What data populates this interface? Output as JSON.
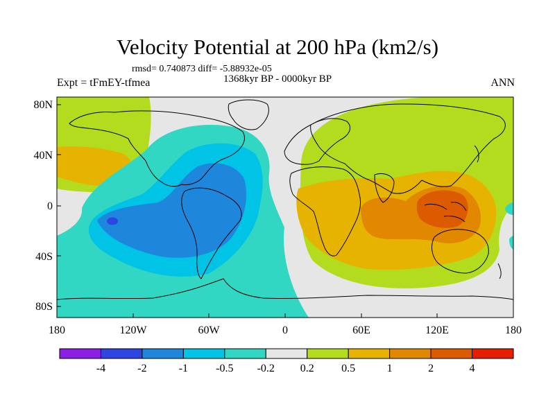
{
  "title": "Velocity Potential at 200 hPa (km2/s)",
  "stats": "rmsd= 0.740873 diff= -5.88932e-05",
  "period": "1368kyr BP - 0000kyr BP",
  "experiment": "Expt = tFmEY-tfmea",
  "season": "ANN",
  "map": {
    "lat_ticks": [
      "80N",
      "40N",
      "0",
      "40S",
      "80S"
    ],
    "lon_ticks": [
      "180",
      "120W",
      "60W",
      "0",
      "60E",
      "120E",
      "180"
    ]
  },
  "colorbar": {
    "colors": [
      "#8c1ee6",
      "#2d46e1",
      "#1e87dc",
      "#00c3e6",
      "#32d7c3",
      "#e6e6e6",
      "#b4dc1e",
      "#e6b400",
      "#e18700",
      "#dc5a00",
      "#e61e00"
    ],
    "labels": [
      "-4",
      "-2",
      "-1",
      "-0.5",
      "-0.2",
      "0.2",
      "0.5",
      "1",
      "2",
      "4"
    ]
  }
}
